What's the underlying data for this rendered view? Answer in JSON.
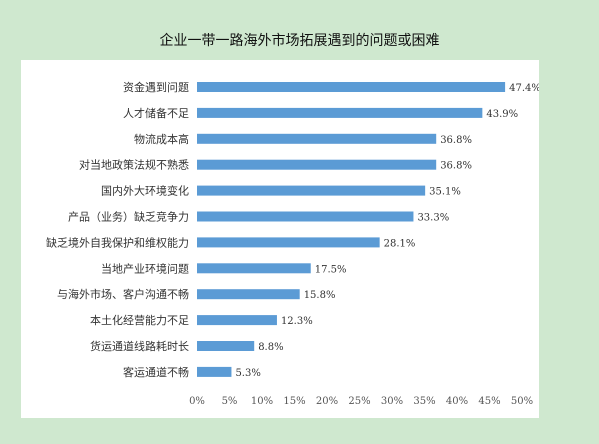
{
  "chart_data": {
    "type": "bar",
    "orientation": "horizontal",
    "title": "企业一带一路海外市场拓展遇到的问题或困难",
    "categories": [
      "资金遇到问题",
      "人才储备不足",
      "物流成本高",
      "对当地政策法规不熟悉",
      "国内外大环境变化",
      "产品（业务）缺乏竞争力",
      "缺乏境外自我保护和维权能力",
      "当地产业环境问题",
      "与海外市场、客户沟通不畅",
      "本土化经营能力不足",
      "货运通道线路耗时长",
      "客运通道不畅"
    ],
    "values": [
      47.4,
      43.9,
      36.8,
      36.8,
      35.1,
      33.3,
      28.1,
      17.5,
      15.8,
      12.3,
      8.8,
      5.3
    ],
    "value_labels": [
      "47.4%",
      "43.9%",
      "36.8%",
      "36.8%",
      "35.1%",
      "33.3%",
      "28.1%",
      "17.5%",
      "15.8%",
      "12.3%",
      "8.8%",
      "5.3%"
    ],
    "x_ticks": [
      "0%",
      "5%",
      "10%",
      "15%",
      "20%",
      "25%",
      "30%",
      "35%",
      "40%",
      "45%",
      "50%"
    ],
    "xlim": [
      0,
      50
    ],
    "xlabel": "",
    "ylabel": "",
    "grid": false,
    "bar_color": "#5b9bd5",
    "background_color": "#cfe8cf",
    "panel_color": "#ffffff"
  }
}
